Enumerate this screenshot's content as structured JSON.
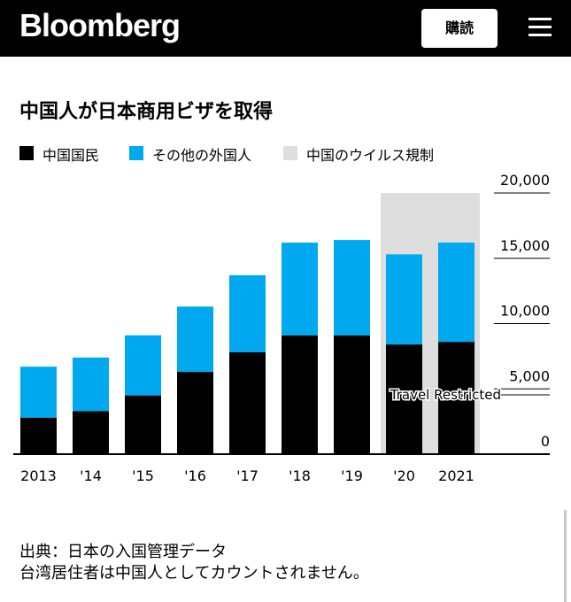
{
  "header": {
    "logo": "Bloomberg",
    "subscribe_label": "購読",
    "menu_icon": "hamburger-menu-icon"
  },
  "chart_data": {
    "type": "bar",
    "stacked": true,
    "title": "中国人が日本商用ビザを取得",
    "categories": [
      "2013",
      "'14",
      "'15",
      "'16",
      "'17",
      "'18",
      "'19",
      "'20",
      "2021"
    ],
    "series": [
      {
        "name": "中国国民",
        "color": "#000000",
        "values": [
          2800,
          3300,
          4500,
          6300,
          7800,
          9100,
          9100,
          8400,
          8600
        ]
      },
      {
        "name": "その他の外国人",
        "color": "#00a8f0",
        "values": [
          3900,
          4100,
          4600,
          5000,
          5900,
          7100,
          7300,
          6900,
          7600
        ]
      }
    ],
    "shaded_region": {
      "label": "中国のウイルス規制",
      "color": "#dedede",
      "categories": [
        "'20",
        "2021"
      ]
    },
    "annotation": "Travel Restricted",
    "ylim": [
      0,
      20000
    ],
    "yticks": [
      "20,000",
      "15,000",
      "10,000",
      "5,000",
      "0"
    ],
    "ytick_values": [
      20000,
      15000,
      10000,
      5000,
      0
    ],
    "legend_position": "top-left",
    "grid": false
  },
  "source": {
    "line1": "出典：日本の入国管理データ",
    "line2": "台湾居住者は中国人としてカウントされません。"
  }
}
